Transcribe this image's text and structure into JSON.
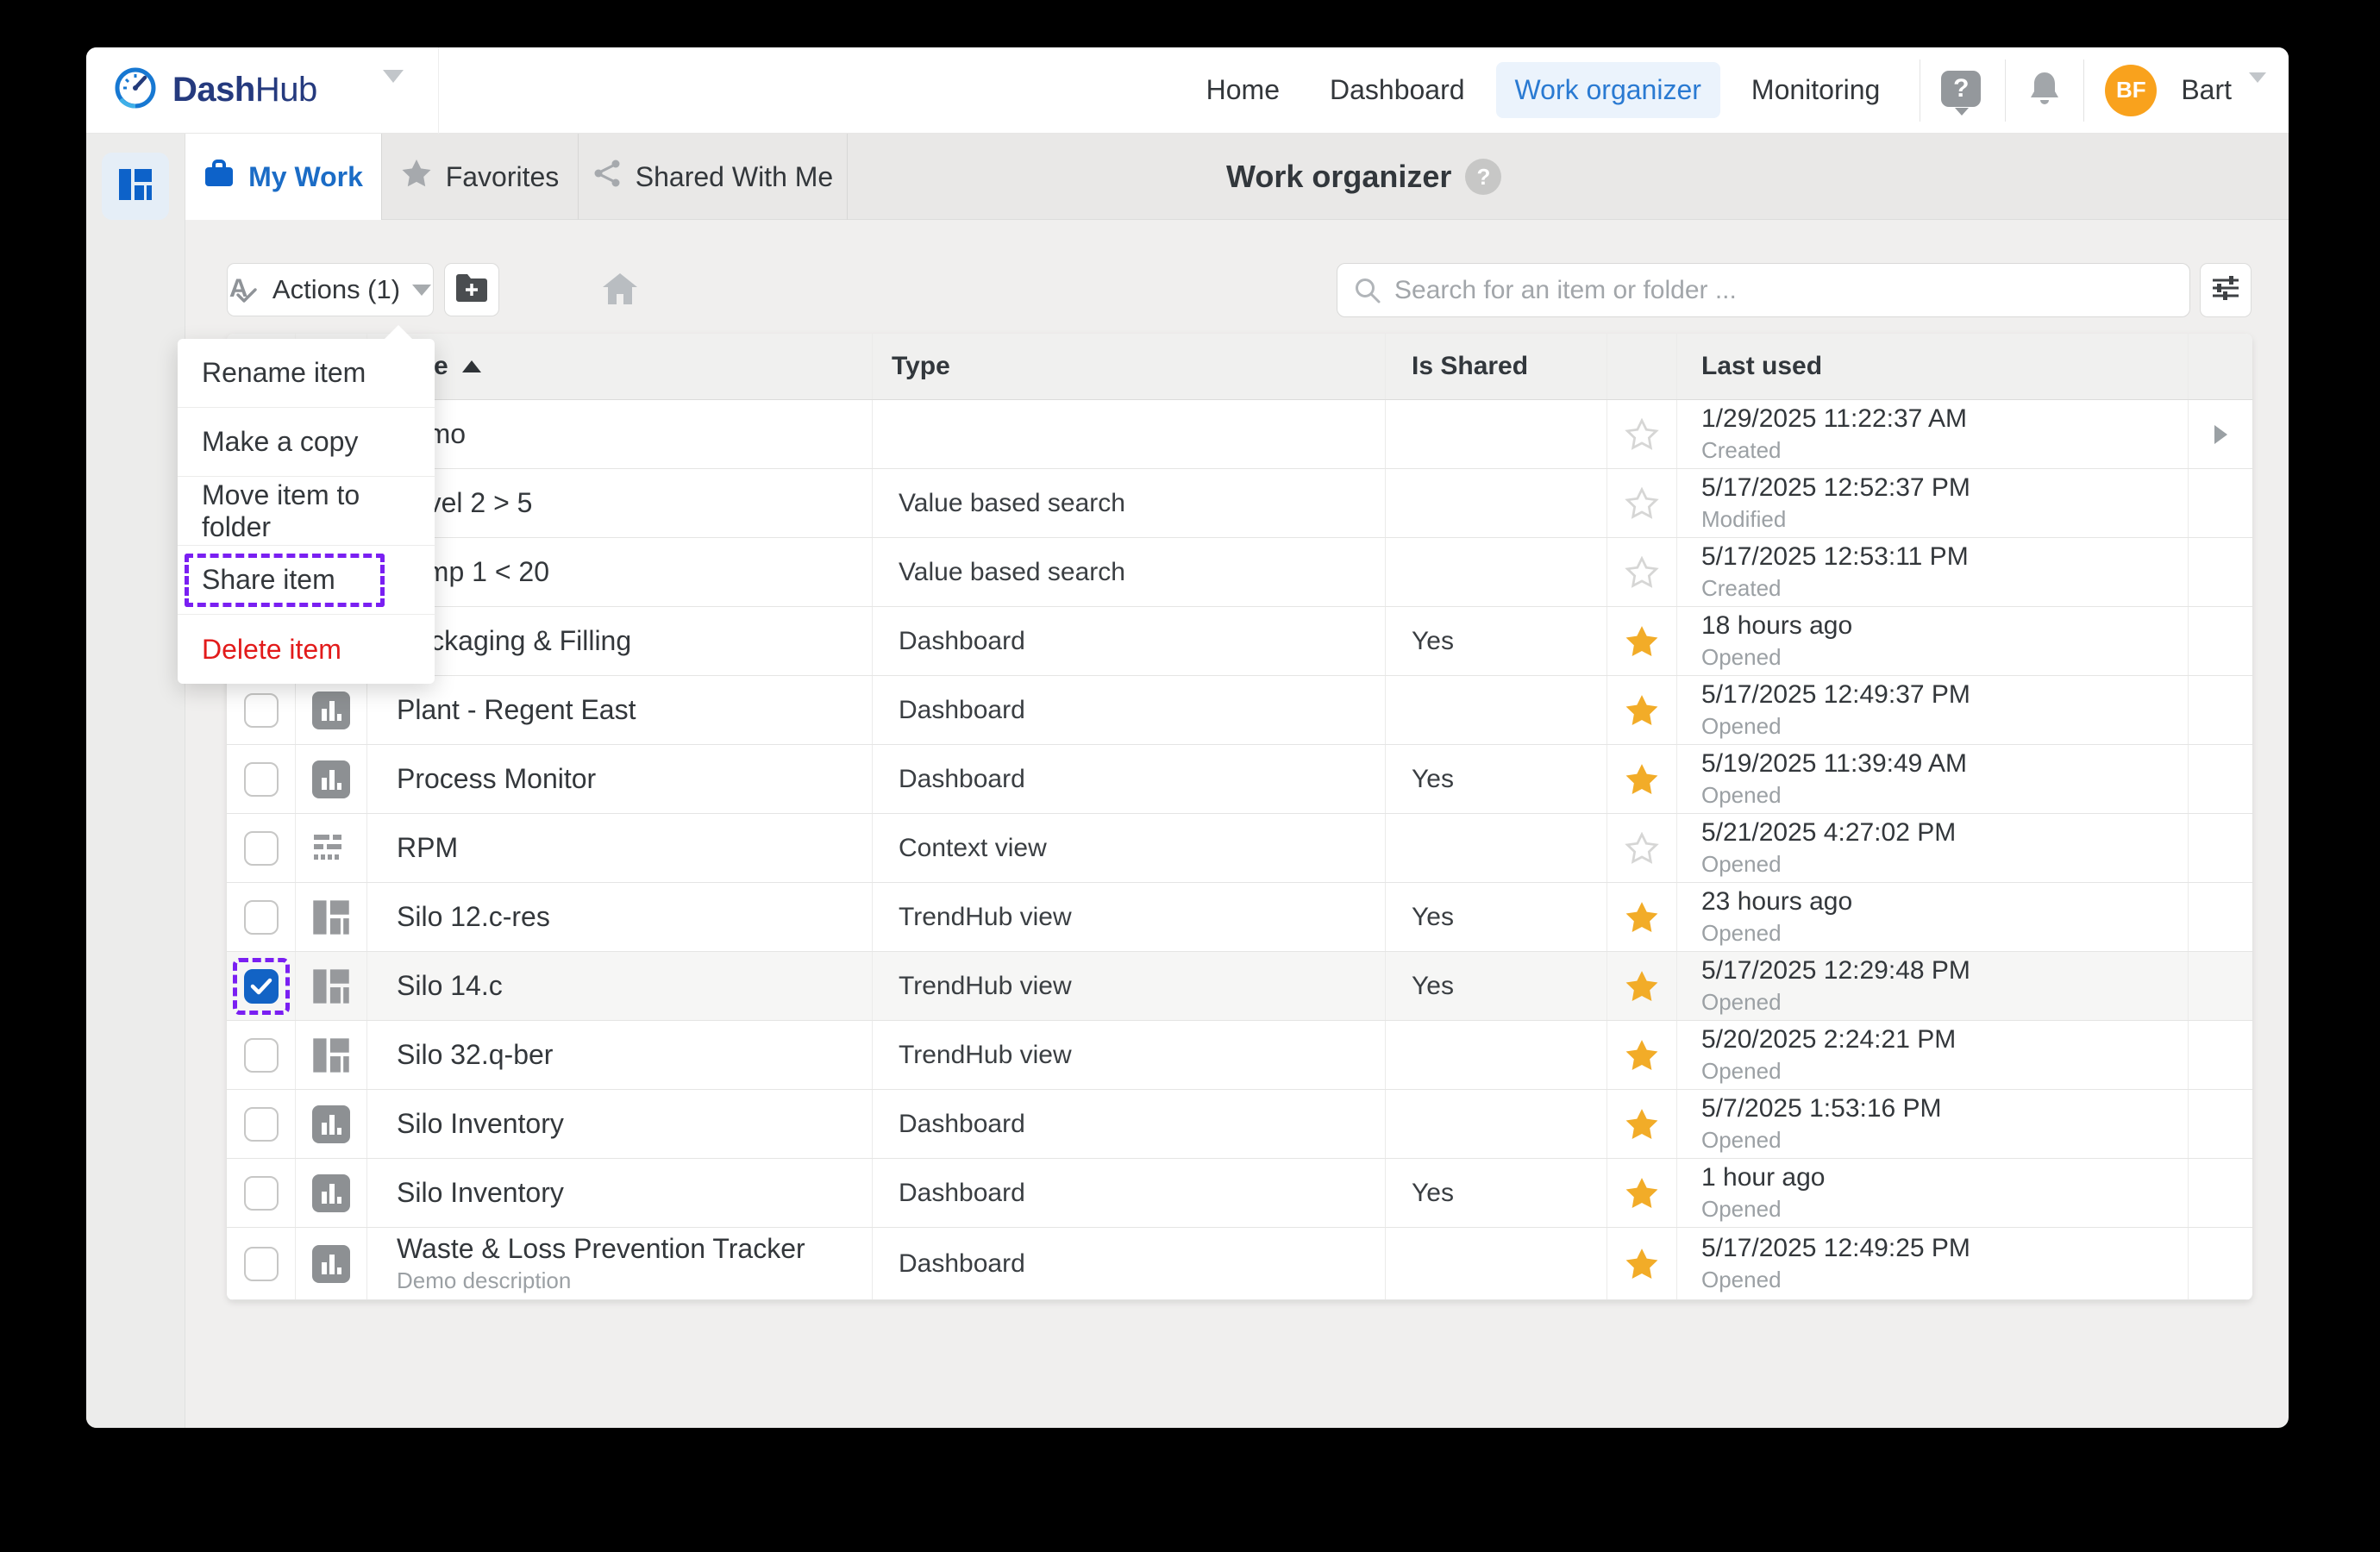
{
  "colors": {
    "accent_blue": "#1b6cc6",
    "checkbox_blue": "#1263c5",
    "highlight_purple": "#7a1ff2",
    "star_yellow": "#f2ac28",
    "avatar_orange": "#f9a21d",
    "danger_red": "#e21b1b"
  },
  "header": {
    "logo": {
      "brand_bold": "Dash",
      "brand_light": "Hub"
    },
    "nav": [
      {
        "label": "Home",
        "active": false
      },
      {
        "label": "Dashboard",
        "active": false
      },
      {
        "label": "Work organizer",
        "active": true
      },
      {
        "label": "Monitoring",
        "active": false
      }
    ],
    "user": {
      "initials": "BF",
      "name": "Bart"
    }
  },
  "tabs": [
    {
      "label": "My Work",
      "icon": "briefcase-icon",
      "active": true
    },
    {
      "label": "Favorites",
      "icon": "star-icon",
      "active": false
    },
    {
      "label": "Shared With Me",
      "icon": "share-icon",
      "active": false
    }
  ],
  "page_title": "Work organizer",
  "toolbar": {
    "actions_label": "Actions (1)",
    "search_placeholder": "Search for an item or folder ..."
  },
  "menu": {
    "items": [
      {
        "label": "Rename item",
        "highlighted": false,
        "danger": false
      },
      {
        "label": "Make a copy",
        "highlighted": false,
        "danger": false
      },
      {
        "label": "Move item to folder",
        "highlighted": false,
        "danger": false
      },
      {
        "label": "Share item",
        "highlighted": true,
        "danger": false
      },
      {
        "label": "Delete item",
        "highlighted": false,
        "danger": true
      }
    ]
  },
  "table": {
    "columns": {
      "name": "Name",
      "type": "Type",
      "is_shared": "Is Shared",
      "last_used": "Last used"
    },
    "sort_ascending": true,
    "rows": [
      {
        "name": "demo",
        "desc": "",
        "type": "",
        "shared": "",
        "fav": false,
        "icon": "",
        "last": "1/29/2025 11:22:37 AM",
        "action": "Created",
        "chevron": true,
        "selected": false
      },
      {
        "name": "Level 2 > 5",
        "desc": "",
        "type": "Value based search",
        "shared": "",
        "fav": false,
        "icon": "",
        "last": "5/17/2025 12:52:37 PM",
        "action": "Modified",
        "chevron": false,
        "selected": false
      },
      {
        "name": "Temp 1 < 20",
        "desc": "",
        "type": "Value based search",
        "shared": "",
        "fav": false,
        "icon": "",
        "last": "5/17/2025 12:53:11 PM",
        "action": "Created",
        "chevron": false,
        "selected": false
      },
      {
        "name": "Packaging & Filling",
        "desc": "",
        "type": "Dashboard",
        "shared": "Yes",
        "fav": true,
        "icon": "dashboard",
        "last": "18 hours ago",
        "action": "Opened",
        "chevron": false,
        "selected": false
      },
      {
        "name": "Plant - Regent East",
        "desc": "",
        "type": "Dashboard",
        "shared": "",
        "fav": true,
        "icon": "dashboard",
        "last": "5/17/2025 12:49:37 PM",
        "action": "Opened",
        "chevron": false,
        "selected": false
      },
      {
        "name": "Process Monitor",
        "desc": "",
        "type": "Dashboard",
        "shared": "Yes",
        "fav": true,
        "icon": "dashboard",
        "last": "5/19/2025 11:39:49 AM",
        "action": "Opened",
        "chevron": false,
        "selected": false
      },
      {
        "name": "RPM",
        "desc": "",
        "type": "Context view",
        "shared": "",
        "fav": false,
        "icon": "context",
        "last": "5/21/2025 4:27:02 PM",
        "action": "Opened",
        "chevron": false,
        "selected": false
      },
      {
        "name": "Silo 12.c-res",
        "desc": "",
        "type": "TrendHub view",
        "shared": "Yes",
        "fav": true,
        "icon": "trendhub",
        "last": "23 hours ago",
        "action": "Opened",
        "chevron": false,
        "selected": false
      },
      {
        "name": "Silo 14.c",
        "desc": "",
        "type": "TrendHub view",
        "shared": "Yes",
        "fav": true,
        "icon": "trendhub",
        "last": "5/17/2025 12:29:48 PM",
        "action": "Opened",
        "chevron": false,
        "selected": true
      },
      {
        "name": "Silo 32.q-ber",
        "desc": "",
        "type": "TrendHub view",
        "shared": "",
        "fav": true,
        "icon": "trendhub",
        "last": "5/20/2025 2:24:21 PM",
        "action": "Opened",
        "chevron": false,
        "selected": false
      },
      {
        "name": "Silo Inventory",
        "desc": "",
        "type": "Dashboard",
        "shared": "",
        "fav": true,
        "icon": "dashboard",
        "last": "5/7/2025 1:53:16 PM",
        "action": "Opened",
        "chevron": false,
        "selected": false
      },
      {
        "name": "Silo Inventory",
        "desc": "",
        "type": "Dashboard",
        "shared": "Yes",
        "fav": true,
        "icon": "dashboard",
        "last": "1 hour ago",
        "action": "Opened",
        "chevron": false,
        "selected": false
      },
      {
        "name": "Waste & Loss Prevention Tracker",
        "desc": "Demo description",
        "type": "Dashboard",
        "shared": "",
        "fav": true,
        "icon": "dashboard",
        "last": "5/17/2025 12:49:25 PM",
        "action": "Opened",
        "chevron": false,
        "selected": false
      }
    ]
  }
}
